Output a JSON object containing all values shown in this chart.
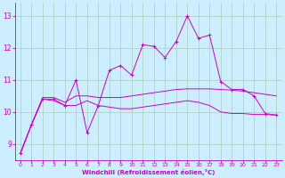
{
  "xlabel": "Windchill (Refroidissement éolien,°C)",
  "bg_color": "#cceeff",
  "grid_color": "#aaccbb",
  "line_color": "#cc00cc",
  "x_ticks": [
    0,
    1,
    2,
    3,
    4,
    5,
    6,
    7,
    8,
    9,
    10,
    11,
    12,
    13,
    14,
    15,
    16,
    17,
    18,
    19,
    20,
    21,
    22,
    23
  ],
  "y_ticks": [
    9,
    10,
    11,
    12,
    13
  ],
  "ylim": [
    8.5,
    13.4
  ],
  "xlim": [
    -0.5,
    23.5
  ],
  "line1_x": [
    0,
    1,
    2,
    3,
    4,
    5,
    6,
    7,
    8,
    9,
    10,
    11,
    12,
    13,
    14,
    15,
    16,
    17,
    18,
    19,
    20,
    21,
    22,
    23
  ],
  "line1_y": [
    8.7,
    9.6,
    10.4,
    10.4,
    10.2,
    11.0,
    9.35,
    10.2,
    11.3,
    11.45,
    11.15,
    12.1,
    12.05,
    11.7,
    12.2,
    13.0,
    12.3,
    12.4,
    10.95,
    10.7,
    10.7,
    10.5,
    9.95,
    9.9
  ],
  "line2_x": [
    0,
    1,
    2,
    3,
    4,
    5,
    6,
    7,
    8,
    9,
    10,
    11,
    12,
    13,
    14,
    15,
    16,
    17,
    18,
    19,
    20,
    21,
    22,
    23
  ],
  "line2_y": [
    8.7,
    9.6,
    10.45,
    10.45,
    10.3,
    10.5,
    10.5,
    10.45,
    10.45,
    10.45,
    10.5,
    10.55,
    10.6,
    10.65,
    10.7,
    10.72,
    10.72,
    10.72,
    10.7,
    10.68,
    10.65,
    10.6,
    10.55,
    10.5
  ],
  "line3_x": [
    0,
    1,
    2,
    3,
    4,
    5,
    6,
    7,
    8,
    9,
    10,
    11,
    12,
    13,
    14,
    15,
    16,
    17,
    18,
    19,
    20,
    21,
    22,
    23
  ],
  "line3_y": [
    8.7,
    9.6,
    10.4,
    10.35,
    10.2,
    10.2,
    10.35,
    10.2,
    10.15,
    10.1,
    10.1,
    10.15,
    10.2,
    10.25,
    10.3,
    10.35,
    10.3,
    10.2,
    10.0,
    9.95,
    9.95,
    9.92,
    9.92,
    9.9
  ]
}
